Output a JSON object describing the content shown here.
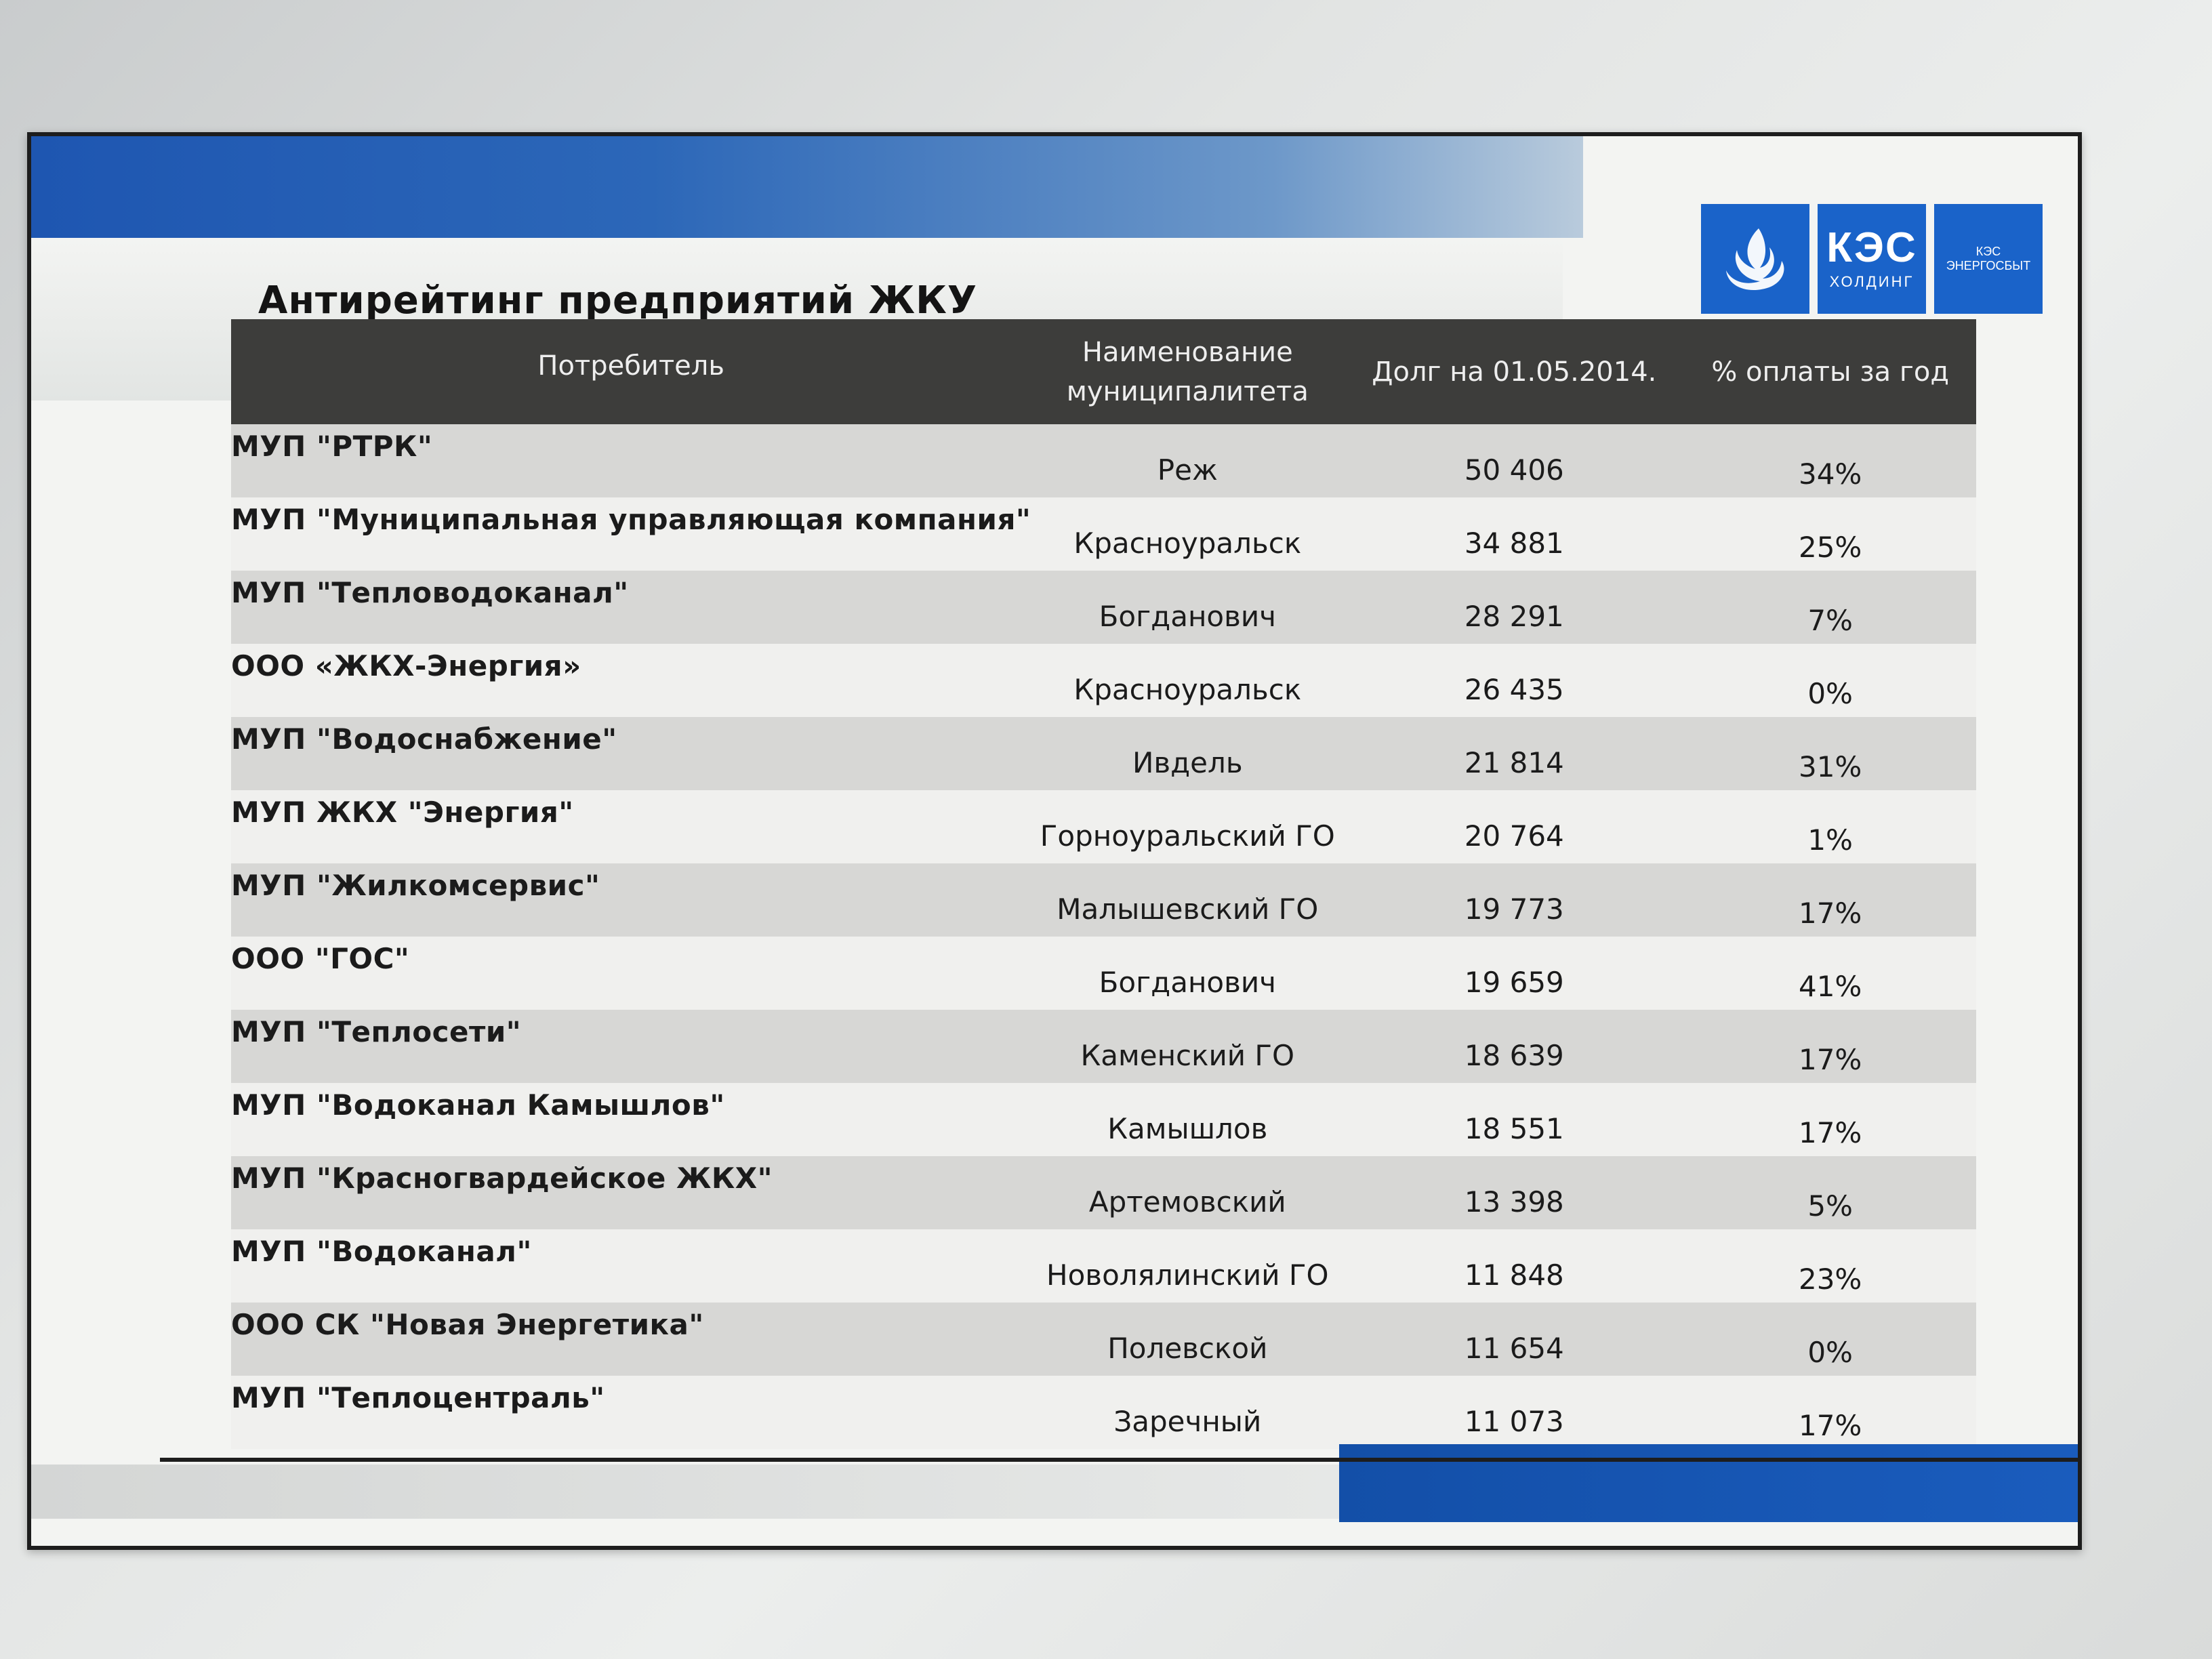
{
  "title": "Антирейтинг предприятий ЖКУ",
  "logos": [
    {
      "icon": "kes-swirl-icon"
    },
    {
      "main": "КЭС",
      "sub": "ХОЛДИНГ"
    },
    {
      "line1": "КЭС",
      "line2": "ЭНЕРГОСБЫТ"
    }
  ],
  "colors": {
    "brand_blue": "#1a63c9",
    "header_bg": "#3d3d3b",
    "row_odd": "#d7d7d5",
    "row_even": "#f0f0ee"
  },
  "table": {
    "headers": {
      "consumer": "Потребитель",
      "municipality_line1": "Наименование",
      "municipality_line2": "муниципалитета",
      "debt": "Долг на 01.05.2014.",
      "payment": "% оплаты за год"
    },
    "rows": [
      {
        "consumer": "МУП \"РТРК\"",
        "municipality": "Реж",
        "debt": "50 406",
        "payment": "34%"
      },
      {
        "consumer": "МУП \"Муниципальная управляющая компания\"",
        "municipality": "Красноуральск",
        "debt": "34 881",
        "payment": "25%"
      },
      {
        "consumer": "МУП \"Тепловодоканал\"",
        "municipality": "Богданович",
        "debt": "28 291",
        "payment": "7%"
      },
      {
        "consumer": "ООО «ЖКХ-Энергия»",
        "municipality": "Красноуральск",
        "debt": "26 435",
        "payment": "0%"
      },
      {
        "consumer": "МУП \"Водоснабжение\"",
        "municipality": "Ивдель",
        "debt": "21 814",
        "payment": "31%"
      },
      {
        "consumer": "МУП ЖКХ \"Энергия\"",
        "municipality": "Горноуральский ГО",
        "debt": "20 764",
        "payment": "1%"
      },
      {
        "consumer": "МУП \"Жилкомсервис\"",
        "municipality": "Малышевский ГО",
        "debt": "19 773",
        "payment": "17%"
      },
      {
        "consumer": "ООО \"ГОС\"",
        "municipality": "Богданович",
        "debt": "19 659",
        "payment": "41%"
      },
      {
        "consumer": "МУП \"Теплосети\"",
        "municipality": "Каменский ГО",
        "debt": "18 639",
        "payment": "17%"
      },
      {
        "consumer": "МУП \"Водоканал Камышлов\"",
        "municipality": "Камышлов",
        "debt": "18 551",
        "payment": "17%"
      },
      {
        "consumer": "МУП \"Красногвардейское ЖКХ\"",
        "municipality": "Артемовский",
        "debt": "13 398",
        "payment": "5%"
      },
      {
        "consumer": "МУП \"Водоканал\"",
        "municipality": "Новолялинский ГО",
        "debt": "11 848",
        "payment": "23%"
      },
      {
        "consumer": "ООО СК \"Новая Энергетика\"",
        "municipality": "Полевской",
        "debt": "11 654",
        "payment": "0%"
      },
      {
        "consumer": "МУП \"Теплоцентраль\"",
        "municipality": "Заречный",
        "debt": "11 073",
        "payment": "17%"
      }
    ]
  }
}
